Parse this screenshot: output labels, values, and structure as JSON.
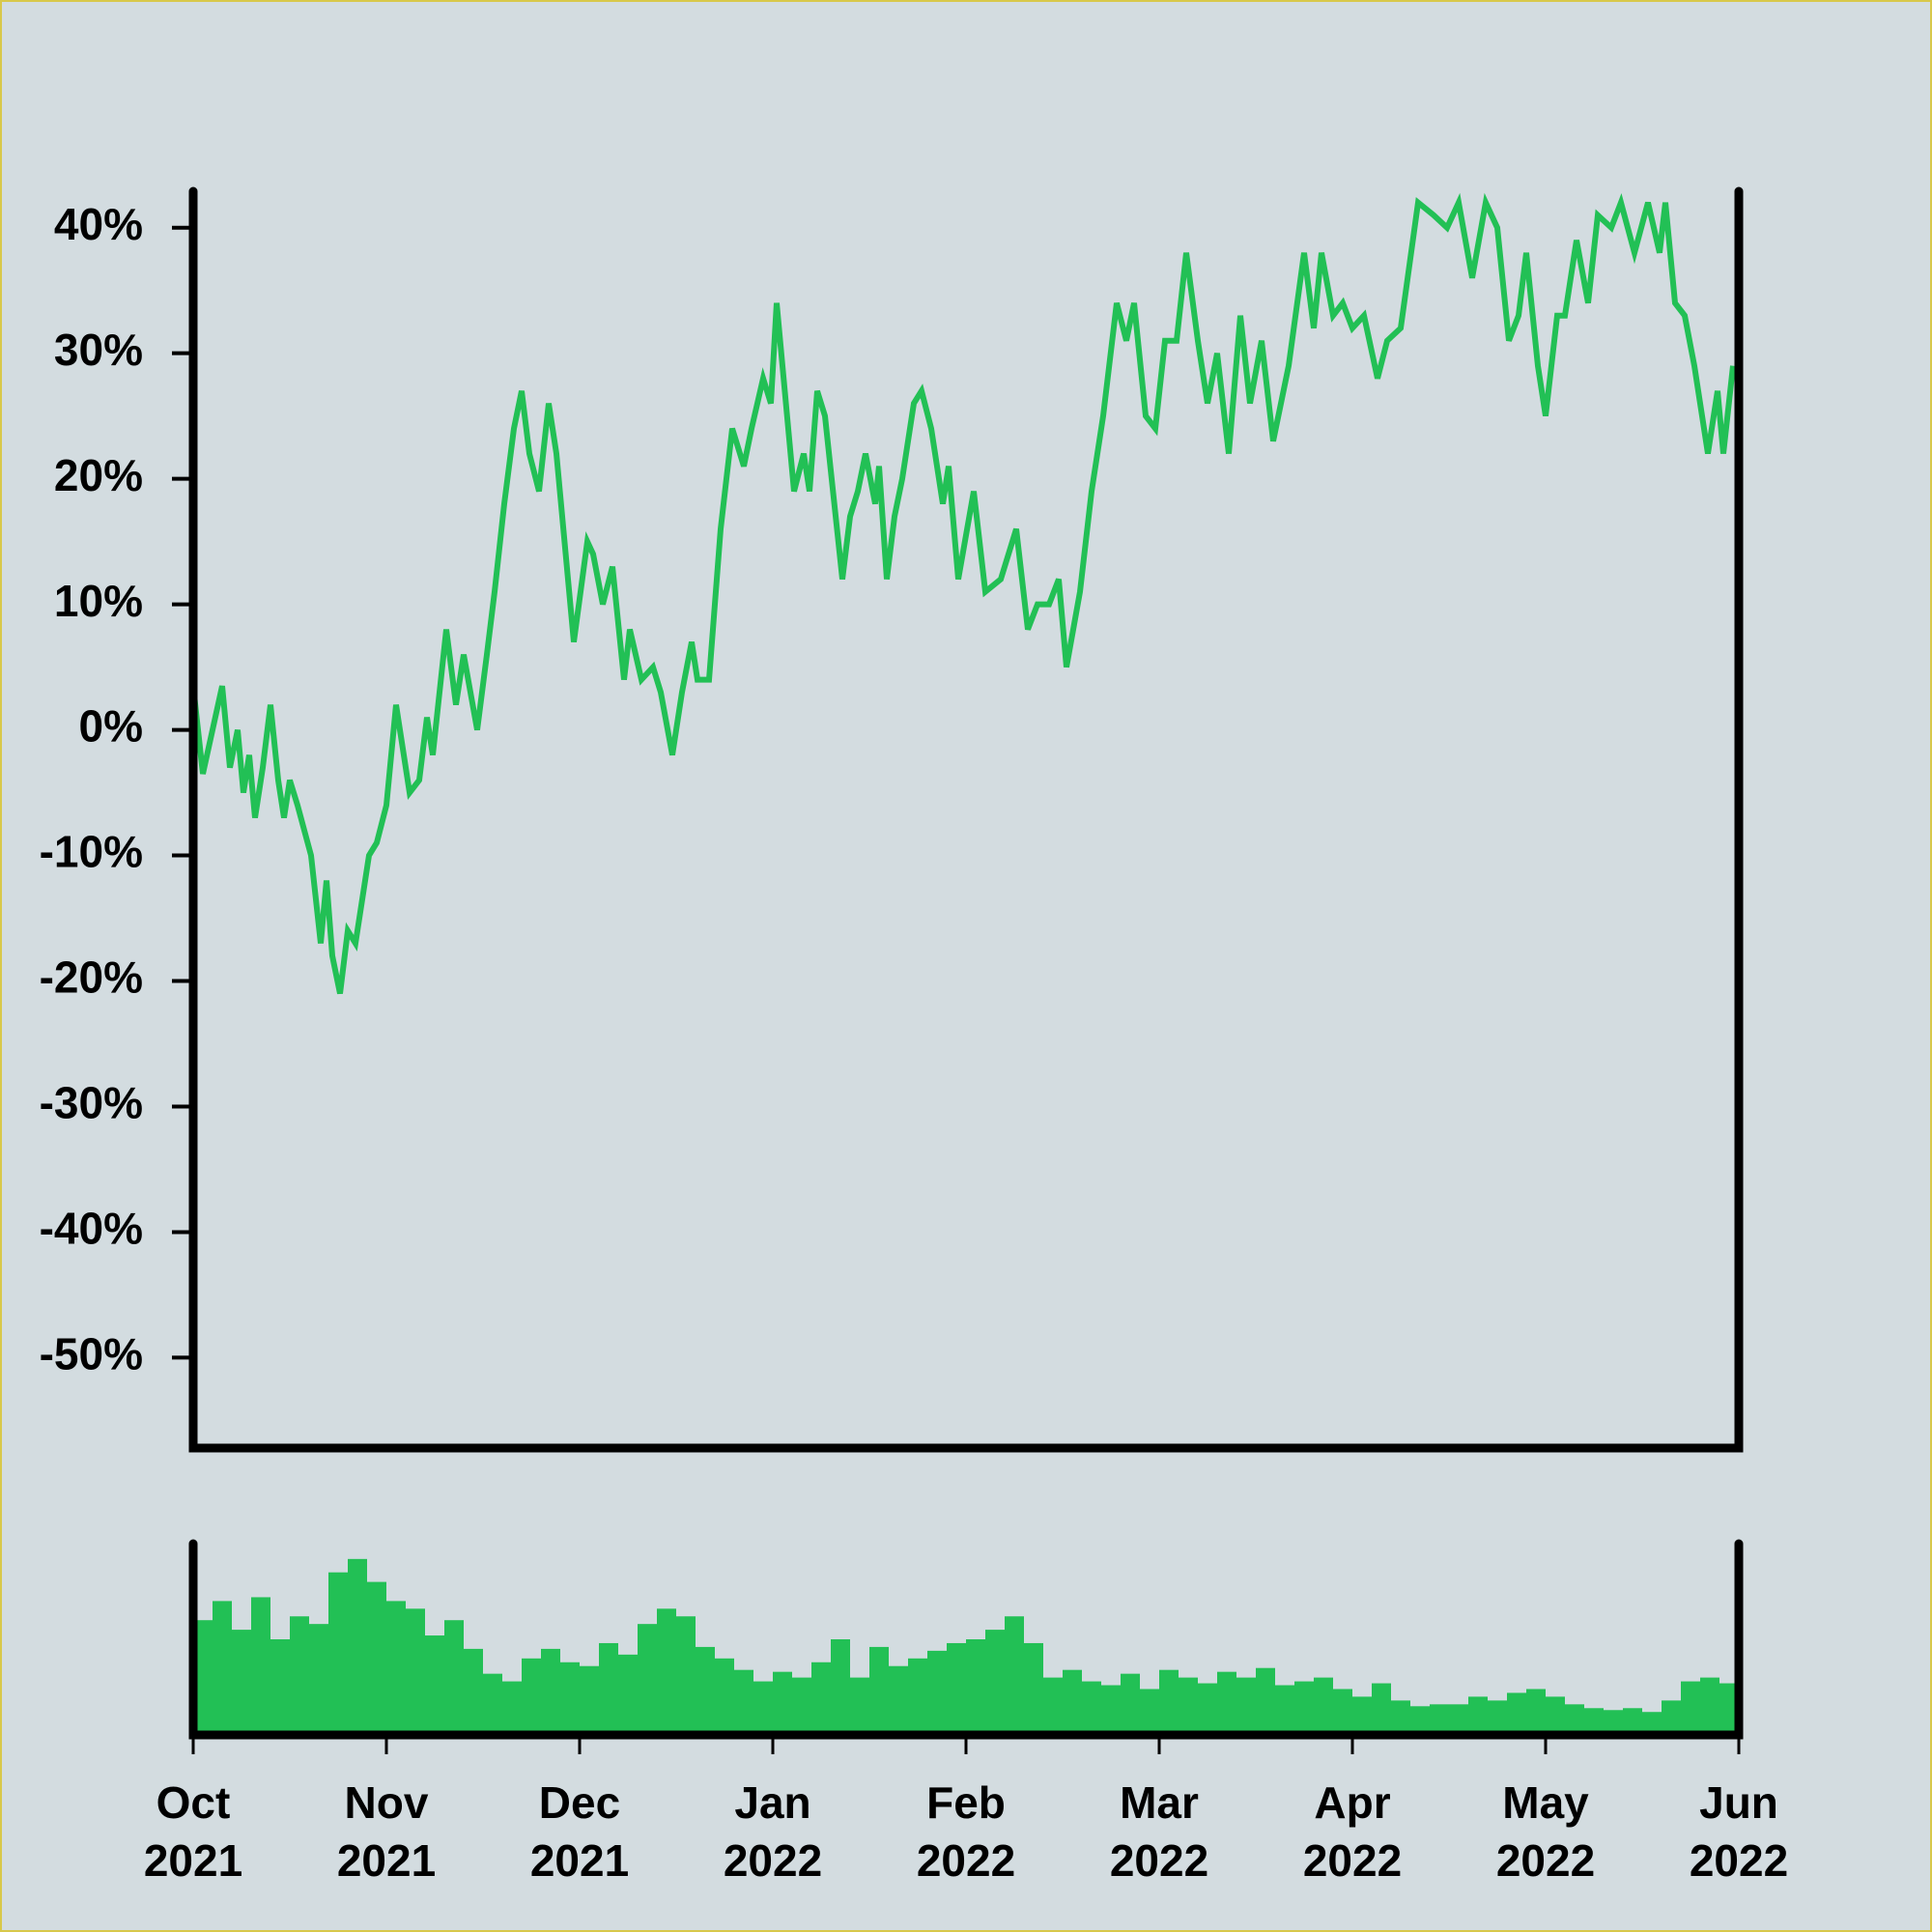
{
  "chart_data": [
    {
      "type": "line",
      "color": "#22c055",
      "x": [
        0,
        0.05,
        0.1,
        0.15,
        0.19,
        0.23,
        0.26,
        0.29,
        0.32,
        0.36,
        0.4,
        0.44,
        0.47,
        0.5,
        0.54,
        0.61,
        0.66,
        0.69,
        0.72,
        0.76,
        0.8,
        0.84,
        0.91,
        0.95,
        1.0,
        1.05,
        1.12,
        1.17,
        1.21,
        1.24,
        1.31,
        1.36,
        1.4,
        1.47,
        1.52,
        1.56,
        1.61,
        1.66,
        1.7,
        1.74,
        1.79,
        1.84,
        1.88,
        1.97,
        2.04,
        2.07,
        2.12,
        2.17,
        2.23,
        2.26,
        2.32,
        2.38,
        2.42,
        2.48,
        2.53,
        2.58,
        2.61,
        2.67,
        2.73,
        2.79,
        2.85,
        2.89,
        2.95,
        2.99,
        3.02,
        3.11,
        3.16,
        3.19,
        3.23,
        3.27,
        3.36,
        3.4,
        3.44,
        3.48,
        3.53,
        3.55,
        3.59,
        3.63,
        3.67,
        3.73,
        3.77,
        3.82,
        3.88,
        3.91,
        3.96,
        4.04,
        4.1,
        4.18,
        4.26,
        4.32,
        4.37,
        4.43,
        4.48,
        4.52,
        4.59,
        4.65,
        4.71,
        4.78,
        4.83,
        4.87,
        4.93,
        4.98,
        5.03,
        5.09,
        5.14,
        5.2,
        5.25,
        5.3,
        5.36,
        5.42,
        5.47,
        5.53,
        5.59,
        5.67,
        5.75,
        5.8,
        5.84,
        5.9,
        5.95,
        6.0,
        6.06,
        6.13,
        6.18,
        6.25,
        6.34,
        6.42,
        6.49,
        6.55,
        6.62,
        6.69,
        6.75,
        6.81,
        6.86,
        6.9,
        6.96,
        7.0,
        7.06,
        7.1,
        7.16,
        7.22,
        7.27,
        7.34,
        7.39,
        7.46,
        7.53,
        7.59,
        7.62,
        7.67,
        7.72,
        7.77,
        7.84,
        7.89,
        7.92,
        7.97
      ],
      "values": [
        3.5,
        -3.5,
        0,
        3.5,
        -3,
        0,
        -5,
        -2,
        -7,
        -3,
        2,
        -4,
        -7,
        -4,
        -6,
        -10,
        -17,
        -12,
        -18,
        -21,
        -16,
        -17,
        -10,
        -9,
        -6,
        2,
        -5,
        -4,
        1,
        -2,
        8,
        2,
        6,
        0,
        6,
        11,
        18,
        24,
        27,
        22,
        19,
        26,
        22,
        7,
        15,
        14,
        10,
        13,
        4,
        8,
        4,
        5,
        3,
        -2,
        3,
        7,
        4,
        4,
        16,
        24,
        21,
        24,
        28,
        26,
        34,
        19,
        22,
        19,
        27,
        25,
        12,
        17,
        19,
        22,
        18,
        21,
        12,
        17,
        20,
        26,
        27,
        24,
        18,
        21,
        12,
        19,
        11,
        12,
        16,
        8,
        10,
        10,
        12,
        5,
        11,
        19,
        25,
        34,
        31,
        34,
        25,
        24,
        31,
        31,
        38,
        31,
        26,
        30,
        22,
        33,
        26,
        31,
        23,
        29,
        38,
        32,
        38,
        33,
        34,
        32,
        33,
        28,
        31,
        32,
        42,
        41,
        40,
        42,
        36,
        42,
        40,
        31,
        33,
        38,
        29,
        25,
        33,
        33,
        39,
        34,
        41,
        40,
        42,
        38,
        42,
        38,
        42,
        34,
        33,
        29,
        22,
        27,
        22,
        29
      ],
      "xlim": [
        0,
        8
      ],
      "ylim": [
        -57.2,
        42.9
      ],
      "yticks": [
        {
          "value": -50,
          "label": "-50%"
        },
        {
          "value": -40,
          "label": "-40%"
        },
        {
          "value": -30,
          "label": "-30%"
        },
        {
          "value": -20,
          "label": "-20%"
        },
        {
          "value": -10,
          "label": "-10%"
        },
        {
          "value": 0,
          "label": "0%"
        },
        {
          "value": 10,
          "label": "10%"
        },
        {
          "value": 20,
          "label": "20%"
        },
        {
          "value": 30,
          "label": "30%"
        },
        {
          "value": 40,
          "label": "40%"
        }
      ]
    },
    {
      "type": "bar",
      "color": "#22c055",
      "x": [
        0.05,
        0.15,
        0.25,
        0.35,
        0.45,
        0.55,
        0.65,
        0.75,
        0.85,
        0.95,
        1.05,
        1.15,
        1.25,
        1.35,
        1.45,
        1.55,
        1.65,
        1.75,
        1.85,
        1.95,
        2.05,
        2.15,
        2.25,
        2.35,
        2.45,
        2.55,
        2.65,
        2.75,
        2.85,
        2.95,
        3.05,
        3.15,
        3.25,
        3.35,
        3.45,
        3.55,
        3.65,
        3.75,
        3.85,
        3.95,
        4.05,
        4.15,
        4.25,
        4.35,
        4.45,
        4.55,
        4.65,
        4.75,
        4.85,
        4.95,
        5.05,
        5.15,
        5.25,
        5.35,
        5.45,
        5.55,
        5.65,
        5.75,
        5.85,
        5.95,
        6.05,
        6.15,
        6.25,
        6.35,
        6.45,
        6.55,
        6.65,
        6.75,
        6.85,
        6.95,
        7.05,
        7.15,
        7.25,
        7.35,
        7.45,
        7.55,
        7.65,
        7.75,
        7.85,
        7.95
      ],
      "values": [
        60,
        70,
        55,
        72,
        50,
        62,
        58,
        85,
        92,
        80,
        70,
        66,
        52,
        60,
        45,
        32,
        28,
        40,
        45,
        38,
        36,
        48,
        42,
        58,
        66,
        62,
        46,
        40,
        34,
        28,
        33,
        30,
        38,
        50,
        30,
        46,
        36,
        40,
        44,
        48,
        50,
        55,
        62,
        48,
        30,
        34,
        28,
        26,
        32,
        24,
        34,
        30,
        27,
        33,
        30,
        35,
        26,
        28,
        30,
        24,
        20,
        27,
        18,
        15,
        16,
        16,
        20,
        18,
        22,
        24,
        20,
        16,
        14,
        13,
        14,
        12,
        18,
        28,
        30,
        27
      ],
      "xlim": [
        0,
        8
      ],
      "ylim": [
        0,
        100
      ],
      "xticks": [
        {
          "value": 0,
          "label": "Oct\n2021"
        },
        {
          "value": 1,
          "label": "Nov\n2021"
        },
        {
          "value": 2,
          "label": "Dec\n2021"
        },
        {
          "value": 3,
          "label": "Jan\n2022"
        },
        {
          "value": 4,
          "label": "Feb\n2022"
        },
        {
          "value": 5,
          "label": "Mar\n2022"
        },
        {
          "value": 6,
          "label": "Apr\n2022"
        },
        {
          "value": 7,
          "label": "May\n2022"
        },
        {
          "value": 8,
          "label": "Jun\n2022"
        }
      ]
    }
  ]
}
